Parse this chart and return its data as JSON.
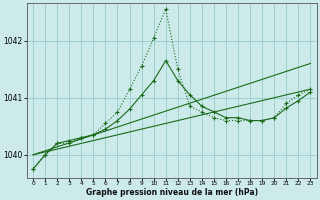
{
  "title": "Graphe pression niveau de la mer (hPa)",
  "background_color": "#cceaea",
  "grid_color": "#99cccc",
  "line_color": "#1a6b1a",
  "x_ticks": [
    0,
    1,
    2,
    3,
    4,
    5,
    6,
    7,
    8,
    9,
    10,
    11,
    12,
    13,
    14,
    15,
    16,
    17,
    18,
    19,
    20,
    21,
    22,
    23
  ],
  "y_ticks": [
    1040,
    1041,
    1042
  ],
  "ylim": [
    1039.6,
    1042.65
  ],
  "xlim": [
    -0.5,
    23.5
  ],
  "line_main": [
    1039.75,
    1040.0,
    1040.2,
    1040.2,
    1040.3,
    1040.35,
    1040.55,
    1040.75,
    1041.15,
    1041.55,
    1042.05,
    1042.55,
    1041.5,
    1040.85,
    1040.75,
    1040.65,
    1040.6,
    1040.6,
    1040.6,
    1040.6,
    1040.65,
    1040.9,
    1041.05,
    1041.15
  ],
  "line_secondary": [
    1039.75,
    1040.0,
    1040.2,
    1040.25,
    1040.3,
    1040.35,
    1040.45,
    1040.6,
    1040.8,
    1041.05,
    1041.3,
    1041.65,
    1041.3,
    1041.05,
    1040.85,
    1040.75,
    1040.65,
    1040.65,
    1040.6,
    1040.6,
    1040.65,
    1040.82,
    1040.95,
    1041.1
  ],
  "fan_upper": {
    "x": [
      0,
      23
    ],
    "y": [
      1040.0,
      1041.6
    ]
  },
  "fan_lower": {
    "x": [
      0,
      23
    ],
    "y": [
      1040.0,
      1041.15
    ]
  },
  "figsize": [
    3.2,
    2.0
  ],
  "dpi": 100
}
